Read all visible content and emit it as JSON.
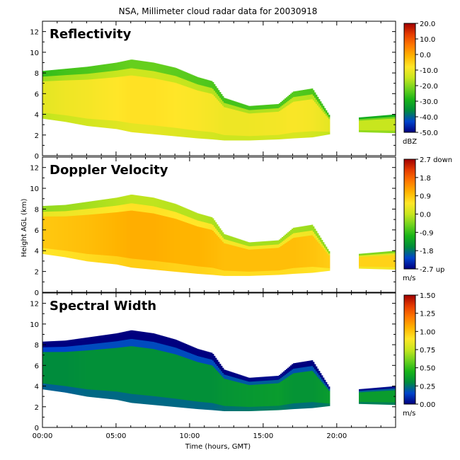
{
  "title": "NSA, Millimeter cloud radar data for 20030918",
  "xlabel": "Time (hours, GMT)",
  "ylabel": "Height AGL (km)",
  "x_ticks": [
    "00:00",
    "05:00",
    "10:00",
    "15:00",
    "20:00"
  ],
  "colors": {
    "background": "#ffffff",
    "axes": "#000000"
  },
  "chart_data": [
    {
      "type": "heatmap",
      "panel_title": "Reflectivity",
      "quantity": "reflectivity",
      "unit": "dBZ",
      "colorbar_ticks": [
        "20.0",
        "10.0",
        "0.0",
        "-10.0",
        "-20.0",
        "-30.0",
        "-40.0",
        "-50.0"
      ],
      "colorbar_range": [
        -50,
        20
      ],
      "xlim_hours": [
        0,
        24
      ],
      "ylim_km": [
        0,
        13
      ],
      "y_ticks": [
        "0",
        "2",
        "4",
        "6",
        "8",
        "10",
        "12"
      ],
      "palette": [
        "#00007f",
        "#0044cc",
        "#008c3c",
        "#18b418",
        "#6ed21e",
        "#c8e61e",
        "#ffe628",
        "#ffb400",
        "#ff7800",
        "#e63c00",
        "#a00000"
      ],
      "cloud_extent": [
        {
          "t": 0.0,
          "base": 3.6,
          "top": 8.2,
          "level": 0.55
        },
        {
          "t": 1.5,
          "base": 3.3,
          "top": 8.4,
          "level": 0.57
        },
        {
          "t": 3.0,
          "base": 2.9,
          "top": 8.6,
          "level": 0.58
        },
        {
          "t": 5.0,
          "base": 2.6,
          "top": 9.0,
          "level": 0.6
        },
        {
          "t": 6.0,
          "base": 2.3,
          "top": 9.3,
          "level": 0.61
        },
        {
          "t": 7.5,
          "base": 2.1,
          "top": 9.0,
          "level": 0.61
        },
        {
          "t": 9.0,
          "base": 1.9,
          "top": 8.5,
          "level": 0.6
        },
        {
          "t": 10.5,
          "base": 1.7,
          "top": 7.6,
          "level": 0.59
        },
        {
          "t": 11.5,
          "base": 1.6,
          "top": 7.2,
          "level": 0.58
        },
        {
          "t": 12.3,
          "base": 1.5,
          "top": 5.6,
          "level": 0.57
        },
        {
          "t": 14.0,
          "base": 1.5,
          "top": 4.8,
          "level": 0.57
        },
        {
          "t": 16.0,
          "base": 1.6,
          "top": 5.0,
          "level": 0.58
        },
        {
          "t": 17.0,
          "base": 1.7,
          "top": 6.2,
          "level": 0.59
        },
        {
          "t": 18.3,
          "base": 1.8,
          "top": 6.5,
          "level": 0.58
        },
        {
          "t": 19.5,
          "base": 2.1,
          "top": 3.8,
          "level": 0.55
        }
      ],
      "cloud_extent_2": [
        {
          "t": 21.5,
          "base": 2.3,
          "top": 3.7,
          "level": 0.5
        },
        {
          "t": 24.0,
          "base": 2.2,
          "top": 4.0,
          "level": 0.5
        }
      ]
    },
    {
      "type": "heatmap",
      "panel_title": "Doppler Velocity",
      "quantity": "doppler_velocity",
      "unit": "m/s",
      "colorbar_ticks": [
        "2.7 down",
        "1.8",
        "0.9",
        "0.0",
        "-0.9",
        "-1.8",
        "-2.7 up"
      ],
      "colorbar_range": [
        -2.7,
        2.7
      ],
      "xlim_hours": [
        0,
        24
      ],
      "ylim_km": [
        0,
        13
      ],
      "y_ticks": [
        "0",
        "2",
        "4",
        "6",
        "8",
        "10",
        "12"
      ],
      "palette": [
        "#00007f",
        "#0044cc",
        "#008c3c",
        "#18b418",
        "#6ed21e",
        "#c8e61e",
        "#ffe628",
        "#ffb400",
        "#ff7800",
        "#e63c00",
        "#a00000"
      ],
      "cloud_extent": [
        {
          "t": 0.0,
          "base": 3.7,
          "top": 8.3,
          "level": 0.66
        },
        {
          "t": 1.5,
          "base": 3.4,
          "top": 8.4,
          "level": 0.67
        },
        {
          "t": 3.0,
          "base": 3.0,
          "top": 8.7,
          "level": 0.68
        },
        {
          "t": 5.0,
          "base": 2.7,
          "top": 9.1,
          "level": 0.7
        },
        {
          "t": 6.0,
          "base": 2.4,
          "top": 9.4,
          "level": 0.71
        },
        {
          "t": 7.5,
          "base": 2.2,
          "top": 9.1,
          "level": 0.71
        },
        {
          "t": 9.0,
          "base": 2.0,
          "top": 8.5,
          "level": 0.7
        },
        {
          "t": 10.5,
          "base": 1.8,
          "top": 7.6,
          "level": 0.7
        },
        {
          "t": 11.5,
          "base": 1.7,
          "top": 7.2,
          "level": 0.69
        },
        {
          "t": 12.3,
          "base": 1.6,
          "top": 5.6,
          "level": 0.68
        },
        {
          "t": 14.0,
          "base": 1.6,
          "top": 4.8,
          "level": 0.68
        },
        {
          "t": 16.0,
          "base": 1.7,
          "top": 5.0,
          "level": 0.68
        },
        {
          "t": 17.0,
          "base": 1.8,
          "top": 6.2,
          "level": 0.68
        },
        {
          "t": 18.3,
          "base": 1.9,
          "top": 6.5,
          "level": 0.67
        },
        {
          "t": 19.5,
          "base": 2.1,
          "top": 3.8,
          "level": 0.65
        }
      ],
      "cloud_extent_2": [
        {
          "t": 21.5,
          "base": 2.3,
          "top": 3.7,
          "level": 0.64
        },
        {
          "t": 24.0,
          "base": 2.2,
          "top": 4.0,
          "level": 0.64
        }
      ]
    },
    {
      "type": "heatmap",
      "panel_title": "Spectral Width",
      "quantity": "spectral_width",
      "unit": "m/s",
      "colorbar_ticks": [
        "1.50",
        "1.25",
        "1.00",
        "0.75",
        "0.50",
        "0.25",
        "0.00"
      ],
      "colorbar_range": [
        0,
        1.5
      ],
      "xlim_hours": [
        0,
        24
      ],
      "ylim_km": [
        0,
        13
      ],
      "y_ticks": [
        "0",
        "2",
        "4",
        "6",
        "8",
        "10",
        "12"
      ],
      "palette": [
        "#00007f",
        "#0044cc",
        "#008c3c",
        "#18b418",
        "#6ed21e",
        "#c8e61e",
        "#ffe628",
        "#ffb400",
        "#ff7800",
        "#e63c00",
        "#a00000"
      ],
      "cloud_extent": [
        {
          "t": 0.0,
          "base": 3.7,
          "top": 8.3,
          "level": 0.2
        },
        {
          "t": 1.5,
          "base": 3.4,
          "top": 8.4,
          "level": 0.2
        },
        {
          "t": 3.0,
          "base": 3.0,
          "top": 8.7,
          "level": 0.21
        },
        {
          "t": 5.0,
          "base": 2.7,
          "top": 9.1,
          "level": 0.21
        },
        {
          "t": 6.0,
          "base": 2.4,
          "top": 9.4,
          "level": 0.21
        },
        {
          "t": 7.5,
          "base": 2.2,
          "top": 9.1,
          "level": 0.21
        },
        {
          "t": 9.0,
          "base": 2.0,
          "top": 8.5,
          "level": 0.21
        },
        {
          "t": 10.5,
          "base": 1.8,
          "top": 7.6,
          "level": 0.21
        },
        {
          "t": 11.5,
          "base": 1.7,
          "top": 7.2,
          "level": 0.21
        },
        {
          "t": 12.3,
          "base": 1.6,
          "top": 5.6,
          "level": 0.22
        },
        {
          "t": 14.0,
          "base": 1.6,
          "top": 4.8,
          "level": 0.23
        },
        {
          "t": 16.0,
          "base": 1.7,
          "top": 5.0,
          "level": 0.24
        },
        {
          "t": 17.0,
          "base": 1.8,
          "top": 6.2,
          "level": 0.22
        },
        {
          "t": 18.3,
          "base": 1.9,
          "top": 6.5,
          "level": 0.22
        },
        {
          "t": 19.5,
          "base": 2.1,
          "top": 3.8,
          "level": 0.24
        }
      ],
      "cloud_extent_2": [
        {
          "t": 21.5,
          "base": 2.3,
          "top": 3.7,
          "level": 0.24
        },
        {
          "t": 24.0,
          "base": 2.2,
          "top": 4.0,
          "level": 0.24
        }
      ]
    }
  ]
}
